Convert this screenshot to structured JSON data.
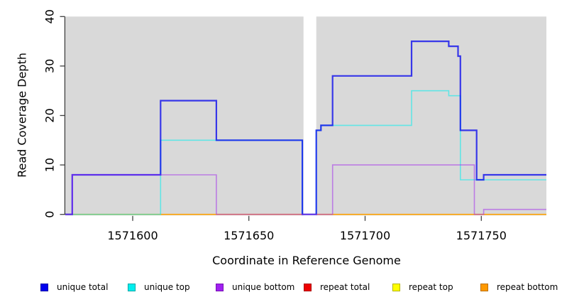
{
  "figure": {
    "xlabel": "Coordinate in Reference Genome",
    "ylabel": "Read Coverage Depth"
  },
  "legend": {
    "items": [
      {
        "label": "unique total",
        "color": "#0000EE",
        "border": "#0000A8"
      },
      {
        "label": "unique top",
        "color": "#00EEEE",
        "border": "#00A8A8"
      },
      {
        "label": "unique bottom",
        "color": "#A020F0",
        "border": "#7710B4"
      },
      {
        "label": "repeat total",
        "color": "#EE0000",
        "border": "#A80000"
      },
      {
        "label": "repeat top",
        "color": "#FFFF00",
        "border": "#B4B400"
      },
      {
        "label": "repeat bottom",
        "color": "#FF9900",
        "border": "#BB6F00"
      }
    ]
  },
  "chart_data": {
    "type": "line",
    "subtype": "step",
    "title": "",
    "xlabel": "Coordinate in Reference Genome",
    "ylabel": "Read Coverage Depth",
    "xlim": [
      1571571,
      1571778
    ],
    "ylim": [
      0,
      40
    ],
    "x_ticks": [
      1571600,
      1571650,
      1571700,
      1571750
    ],
    "x_tick_labels": [
      "1571600",
      "1571650",
      "1571700",
      "1571750"
    ],
    "y_ticks": [
      0,
      10,
      20,
      30,
      40
    ],
    "y_tick_labels": [
      "0",
      "10",
      "20",
      "30",
      "40"
    ],
    "grid": false,
    "plot_background": "#D9D9D9",
    "gap_region": [
      1571673.5,
      1571679
    ],
    "legend_position": "bottom",
    "series": [
      {
        "name": "unique total",
        "color": "#0000EE",
        "steps": [
          [
            1571571,
            0
          ],
          [
            1571574,
            8
          ],
          [
            1571612,
            23
          ],
          [
            1571636,
            15
          ],
          [
            1571673,
            0
          ],
          [
            1571679,
            17
          ],
          [
            1571681,
            18
          ],
          [
            1571686,
            28
          ],
          [
            1571720,
            35
          ],
          [
            1571736,
            34
          ],
          [
            1571740,
            32
          ],
          [
            1571741,
            17
          ],
          [
            1571748,
            7
          ],
          [
            1571751,
            8
          ]
        ],
        "x_end": 1571778
      },
      {
        "name": "unique top",
        "color": "#00EEEE",
        "steps": [
          [
            1571571,
            0
          ],
          [
            1571612,
            15
          ],
          [
            1571673,
            0
          ],
          [
            1571679,
            17
          ],
          [
            1571681,
            18
          ],
          [
            1571720,
            25
          ],
          [
            1571736,
            24
          ],
          [
            1571741,
            7
          ]
        ],
        "x_end": 1571778
      },
      {
        "name": "unique bottom",
        "color": "#A020F0",
        "steps": [
          [
            1571571,
            0
          ],
          [
            1571574,
            8
          ],
          [
            1571636,
            0
          ],
          [
            1571686,
            10
          ],
          [
            1571747,
            0
          ],
          [
            1571751,
            1
          ]
        ],
        "x_end": 1571778
      },
      {
        "name": "repeat total",
        "color": "#EE0000",
        "steps": [
          [
            1571571,
            0
          ]
        ],
        "x_end": 1571778
      },
      {
        "name": "repeat top",
        "color": "#FFFF00",
        "steps": [
          [
            1571571,
            0
          ]
        ],
        "x_end": 1571778
      },
      {
        "name": "repeat bottom",
        "color": "#FF9900",
        "steps": [
          [
            1571571,
            0
          ]
        ],
        "x_end": 1571778
      }
    ],
    "draw_order": [
      "repeat total",
      "repeat top",
      "repeat bottom",
      "unique top",
      "unique total",
      "unique bottom"
    ]
  }
}
